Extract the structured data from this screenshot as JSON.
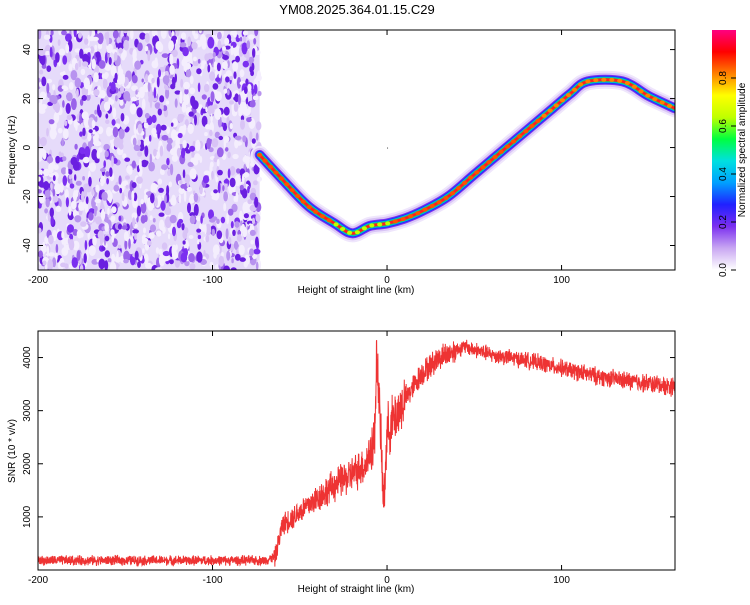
{
  "chart_data": [
    {
      "type": "heatmap",
      "title": "YM08.2025.364.01.15.C29",
      "xlabel": "Height of straight line (km)",
      "ylabel": "Frequency (Hz)",
      "xlim": [
        -200,
        165
      ],
      "ylim": [
        -50,
        48
      ],
      "x_ticks": [
        -200,
        -100,
        0,
        100
      ],
      "y_ticks": [
        -40,
        -20,
        0,
        20,
        40
      ],
      "noise_region_x": [
        -200,
        -73
      ],
      "ridge": {
        "x": [
          -73,
          -60,
          -45,
          -30,
          -20,
          -10,
          0,
          10,
          20,
          35,
          50,
          65,
          80,
          95,
          105,
          115,
          135,
          150,
          165
        ],
        "y": [
          -3,
          -13,
          -24,
          -31,
          -35,
          -32,
          -31,
          -29,
          -26,
          -20,
          -11,
          -2,
          7,
          16,
          22,
          27,
          27,
          21,
          16
        ]
      },
      "colorbar": {
        "label": "Normalized spectral amplitude",
        "ticks": [
          0.0,
          0.2,
          0.4,
          0.6,
          0.8
        ],
        "tick_labels": [
          "0.0",
          "0.2",
          "0.4",
          "0.6",
          "0.8"
        ],
        "colors": [
          "#ffffff",
          "#c9a7f2",
          "#7b2ff0",
          "#2020ff",
          "#00a0ff",
          "#00e0e0",
          "#00ff40",
          "#c0ff00",
          "#ffff00",
          "#ff8000",
          "#ff0000",
          "#ff0080"
        ]
      }
    },
    {
      "type": "line",
      "xlabel": "Height of straight line (km)",
      "ylabel": "SNR (10 * v/v)",
      "xlim": [
        -200,
        165
      ],
      "ylim": [
        0,
        4500
      ],
      "x_ticks": [
        -200,
        -100,
        0,
        100
      ],
      "y_ticks": [
        1000,
        2000,
        3000,
        4000
      ],
      "color": "#ee3333",
      "series": [
        {
          "name": "SNR",
          "x": [
            -200,
            -150,
            -100,
            -70,
            -64,
            -60,
            -50,
            -40,
            -30,
            -20,
            -12,
            -7,
            -6,
            -4,
            -2,
            0,
            10,
            20,
            30,
            40,
            45,
            60,
            80,
            100,
            120,
            140,
            165
          ],
          "y": [
            180,
            180,
            180,
            180,
            250,
            850,
            1100,
            1350,
            1600,
            1800,
            2000,
            2500,
            4200,
            2800,
            1200,
            2600,
            3200,
            3700,
            4000,
            4150,
            4200,
            4050,
            3950,
            3800,
            3650,
            3550,
            3450
          ]
        }
      ]
    }
  ]
}
